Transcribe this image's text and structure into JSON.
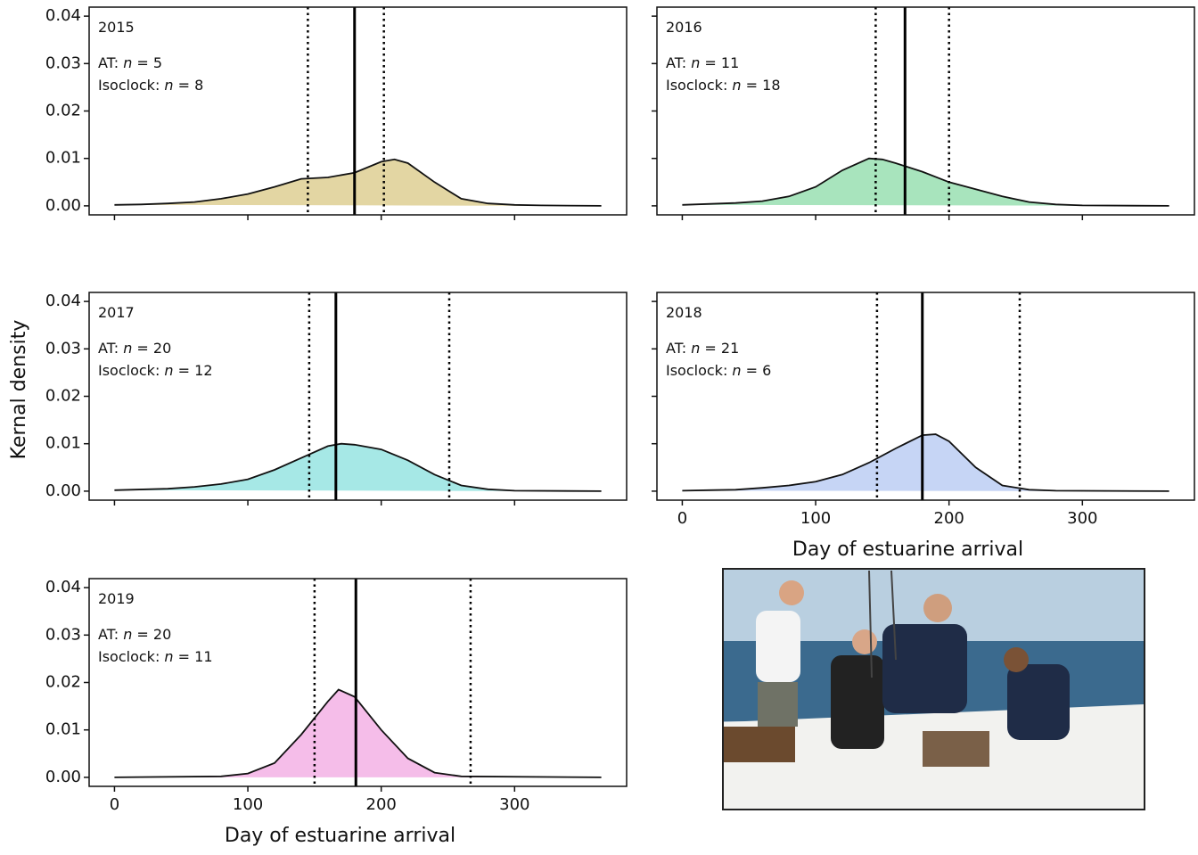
{
  "ylabel": "Kernal density",
  "chart_data": [
    {
      "type": "area",
      "title": "2015",
      "annotations": [
        "AT: n = 5",
        "Isoclock: n = 8"
      ],
      "color": "#e3d6a3",
      "x": [
        0,
        20,
        40,
        60,
        80,
        100,
        120,
        140,
        160,
        180,
        200,
        210,
        220,
        240,
        260,
        280,
        300,
        320,
        365
      ],
      "values": [
        0.0002,
        0.0003,
        0.0005,
        0.0008,
        0.0015,
        0.0025,
        0.004,
        0.0057,
        0.006,
        0.007,
        0.0093,
        0.0098,
        0.009,
        0.005,
        0.0015,
        0.0005,
        0.0002,
        0.0001,
        0
      ],
      "reference_lines": [
        {
          "value": 180,
          "style": "solid"
        },
        {
          "value": 145,
          "style": "dotted"
        },
        {
          "value": 202,
          "style": "dotted"
        }
      ],
      "xlim": [
        -19,
        384
      ],
      "ylim": [
        -0.0019,
        0.0419
      ],
      "xticks": [
        0,
        100,
        200,
        300
      ],
      "yticks": [
        {
          "value": 0,
          "label": "0.00"
        },
        0.01,
        0.02,
        0.03,
        0.04
      ],
      "xtick_labels": false,
      "ytick_labels": true
    },
    {
      "type": "area",
      "title": "2016",
      "annotations": [
        "AT: n = 11",
        "Isoclock: n = 18"
      ],
      "color": "#a8e4bd",
      "x": [
        0,
        40,
        60,
        80,
        100,
        120,
        140,
        150,
        160,
        180,
        200,
        220,
        240,
        260,
        280,
        300,
        365
      ],
      "values": [
        0.0002,
        0.0006,
        0.001,
        0.002,
        0.004,
        0.0075,
        0.01,
        0.0098,
        0.009,
        0.0072,
        0.005,
        0.0035,
        0.002,
        0.0008,
        0.0003,
        0.0001,
        0
      ],
      "reference_lines": [
        {
          "value": 167,
          "style": "solid"
        },
        {
          "value": 145,
          "style": "dotted"
        },
        {
          "value": 200,
          "style": "dotted"
        }
      ],
      "xlim": [
        -19,
        384
      ],
      "ylim": [
        -0.0019,
        0.0419
      ],
      "xticks": [
        0,
        100,
        200,
        300
      ],
      "yticks": [
        {
          "value": 0,
          "label": "0.00"
        },
        0.01,
        0.02,
        0.03,
        0.04
      ],
      "xtick_labels": false,
      "ytick_labels": false
    },
    {
      "type": "area",
      "title": "2017",
      "annotations": [
        "AT: n = 20",
        "Isoclock: n = 12"
      ],
      "color": "#a6e8e6",
      "x": [
        0,
        40,
        60,
        80,
        100,
        120,
        140,
        160,
        170,
        180,
        200,
        220,
        240,
        260,
        280,
        300,
        365
      ],
      "values": [
        0.0002,
        0.0005,
        0.0009,
        0.0015,
        0.0025,
        0.0045,
        0.007,
        0.0095,
        0.01,
        0.0098,
        0.0088,
        0.0065,
        0.0035,
        0.0012,
        0.0004,
        0.0001,
        0
      ],
      "reference_lines": [
        {
          "value": 166,
          "style": "solid"
        },
        {
          "value": 146,
          "style": "dotted"
        },
        {
          "value": 251,
          "style": "dotted"
        }
      ],
      "xlim": [
        -19,
        384
      ],
      "ylim": [
        -0.0019,
        0.0419
      ],
      "xticks": [
        0,
        100,
        200,
        300
      ],
      "yticks": [
        {
          "value": 0,
          "label": "0.00"
        },
        0.01,
        0.02,
        0.03,
        0.04
      ],
      "xtick_labels": false,
      "ytick_labels": true
    },
    {
      "type": "area",
      "title": "2018",
      "annotations": [
        "AT: n = 21",
        "Isoclock: n = 6"
      ],
      "color": "#c6d5f5",
      "x": [
        0,
        20,
        40,
        60,
        80,
        100,
        120,
        140,
        160,
        180,
        190,
        200,
        220,
        240,
        260,
        280,
        365
      ],
      "values": [
        0.0001,
        0.0002,
        0.0003,
        0.0007,
        0.0012,
        0.002,
        0.0035,
        0.006,
        0.009,
        0.0118,
        0.012,
        0.0105,
        0.005,
        0.0012,
        0.0003,
        0.0001,
        0
      ],
      "reference_lines": [
        {
          "value": 180,
          "style": "solid"
        },
        {
          "value": 146,
          "style": "dotted"
        },
        {
          "value": 253,
          "style": "dotted"
        }
      ],
      "xlim": [
        -19,
        384
      ],
      "ylim": [
        -0.0019,
        0.0419
      ],
      "xticks": [
        0,
        100,
        200,
        300
      ],
      "yticks": [
        {
          "value": 0,
          "label": "0.00"
        },
        0.01,
        0.02,
        0.03,
        0.04
      ],
      "xtick_labels": true,
      "ytick_labels": false,
      "xlabel": "Day of estuarine arrival"
    },
    {
      "type": "area",
      "title": "2019",
      "annotations": [
        "AT: n = 20",
        "Isoclock: n = 11"
      ],
      "color": "#f5bde9",
      "x": [
        0,
        80,
        100,
        120,
        140,
        160,
        168,
        180,
        200,
        220,
        240,
        260,
        365
      ],
      "values": [
        0,
        0.0002,
        0.0008,
        0.003,
        0.009,
        0.016,
        0.0185,
        0.017,
        0.01,
        0.004,
        0.001,
        0.0002,
        0
      ],
      "reference_lines": [
        {
          "value": 181,
          "style": "solid"
        },
        {
          "value": 150,
          "style": "dotted"
        },
        {
          "value": 267,
          "style": "dotted"
        }
      ],
      "xlim": [
        -19,
        384
      ],
      "ylim": [
        -0.0019,
        0.0419
      ],
      "xticks": [
        0,
        100,
        200,
        300
      ],
      "yticks": [
        {
          "value": 0,
          "label": "0.00"
        },
        0.01,
        0.02,
        0.03,
        0.04
      ],
      "xtick_labels": true,
      "ytick_labels": true,
      "xlabel": "Day of estuarine arrival"
    }
  ]
}
